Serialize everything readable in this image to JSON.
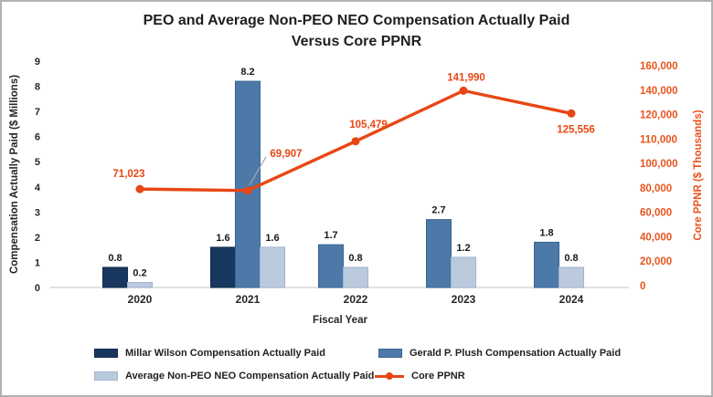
{
  "chart_data": {
    "type": "combo-bar-line",
    "title": "PEO and Average Non-PEO NEO Compensation Actually Paid Versus Core PPNR",
    "title_lines": [
      "PEO and Average Non-PEO NEO Compensation Actually Paid",
      "Versus Core PPNR"
    ],
    "xlabel": "Fiscal Year",
    "ylabel_left": "Compensation Actually Paid ($ Millions)",
    "ylabel_right": "Core PPNR ($ Thousands)",
    "categories": [
      "2020",
      "2021",
      "2022",
      "2023",
      "2024"
    ],
    "series": [
      {
        "name": "Millar Wilson Compensation Actually Paid",
        "type": "bar",
        "axis": "left",
        "color": "#17375E",
        "border": "#122C4C",
        "values": [
          0.8,
          1.6,
          null,
          null,
          null
        ]
      },
      {
        "name": "Gerald P. Plush Compensation Actually Paid",
        "type": "bar",
        "axis": "left",
        "color": "#4C79A8",
        "border": "#3A6494",
        "values": [
          null,
          8.2,
          1.7,
          2.7,
          1.8
        ]
      },
      {
        "name": "Average Non-PEO NEO Compensation Actually Paid",
        "type": "bar",
        "axis": "left",
        "color": "#BCCADE",
        "border": "#9FB3CE",
        "values": [
          0.2,
          1.6,
          0.8,
          1.2,
          0.8
        ]
      },
      {
        "name": "Core PPNR",
        "type": "line",
        "axis": "right",
        "color": "#E84715",
        "values": [
          71023,
          69907,
          105479,
          141990,
          125556
        ],
        "labels": [
          "71,023",
          "69,907",
          "105,479",
          "141,990",
          "125,556"
        ]
      }
    ],
    "left_axis_ticks": [
      "0",
      "1",
      "2",
      "3",
      "4",
      "5",
      "6",
      "7",
      "8",
      "9"
    ],
    "right_axis_ticks": [
      "0",
      "20,000",
      "40,000",
      "60,000",
      "80,000",
      "100,000",
      "110,000",
      "120,000",
      "140,000",
      "160,000"
    ],
    "left_ylim": [
      0,
      9
    ],
    "right_ylim": [
      0,
      160000
    ],
    "grid": false,
    "legend_position": "bottom",
    "right_axis_color": "#E8541E",
    "tick_color": "#262626",
    "baseline_color": "#D9D9D9",
    "leader_line_color": "#A6A6A6"
  }
}
